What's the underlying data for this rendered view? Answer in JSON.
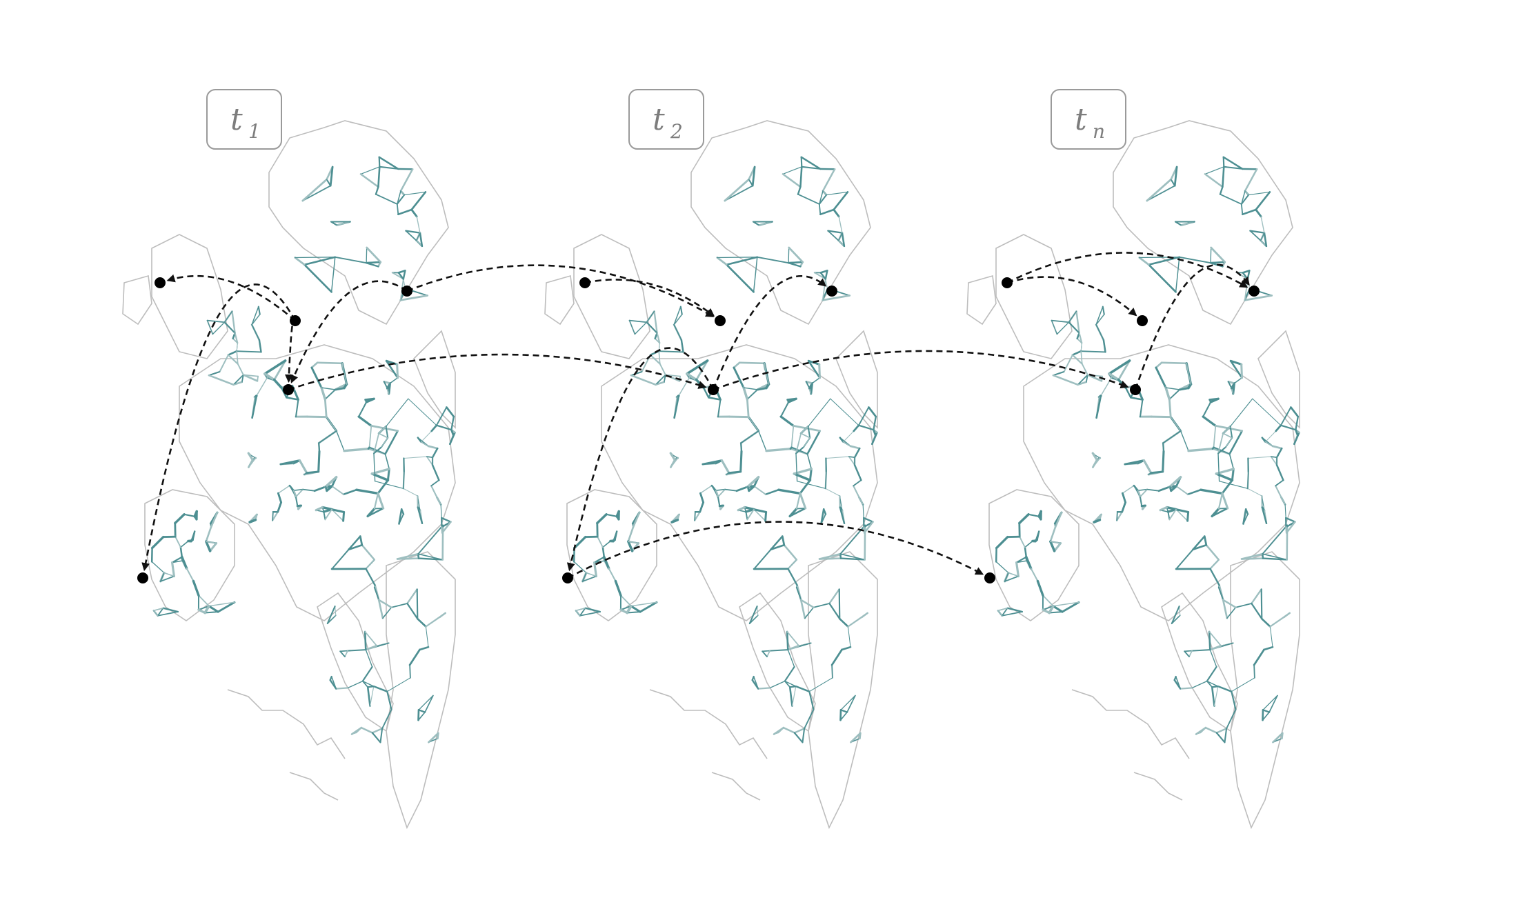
{
  "panels": [
    {
      "id": "t1",
      "base": "t",
      "sub": "1"
    },
    {
      "id": "t2",
      "base": "t",
      "sub": "2"
    },
    {
      "id": "tn",
      "base": "t",
      "sub": "n"
    }
  ],
  "colors": {
    "network": "#4d8f92",
    "network_faint": "#9ebfc0",
    "coastline": "#bdbdbd",
    "connection": "#111111",
    "node": "#000000",
    "label_text": "#7d7d7d"
  },
  "icons": {
    "node": "filled-circle",
    "connection": "dashed-arrow"
  }
}
